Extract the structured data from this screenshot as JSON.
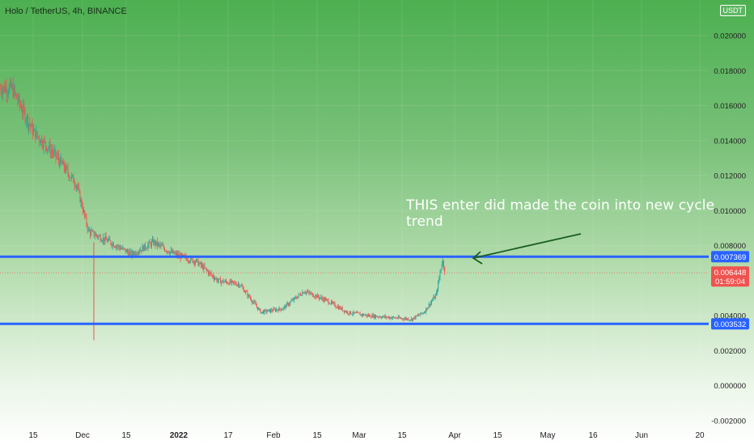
{
  "header": {
    "title": "Holo / TetherUS, 4h, BINANCE",
    "currency_badge": "USDT"
  },
  "annotation": {
    "text": "THIS enter did made the coin into new cycle trend"
  },
  "colors": {
    "level_line": "#2962ff",
    "candle_up": "#26a69a",
    "candle_down": "#ef5350",
    "arrow": "#1b5e20",
    "price_label": "#ef5350"
  },
  "chart_data": {
    "type": "candlestick",
    "symbol": "Holo / TetherUS",
    "interval": "4h",
    "exchange": "BINANCE",
    "quote_currency": "USDT",
    "y_axis": {
      "ticks": [
        "0.020000",
        "0.018000",
        "0.016000",
        "0.014000",
        "0.012000",
        "0.010000",
        "0.008000",
        "0.004000",
        "0.002000",
        "0.000000",
        "-0.002000"
      ],
      "ylim": [
        -0.002,
        0.0215
      ]
    },
    "x_axis": {
      "ticks": [
        {
          "label": "15",
          "bold": false
        },
        {
          "label": "Dec",
          "bold": false
        },
        {
          "label": "15",
          "bold": false
        },
        {
          "label": "2022",
          "bold": true
        },
        {
          "label": "17",
          "bold": false
        },
        {
          "label": "Feb",
          "bold": false
        },
        {
          "label": "15",
          "bold": false
        },
        {
          "label": "Mar",
          "bold": false
        },
        {
          "label": "15",
          "bold": false
        },
        {
          "label": "Apr",
          "bold": false
        },
        {
          "label": "15",
          "bold": false
        },
        {
          "label": "May",
          "bold": false
        },
        {
          "label": "16",
          "bold": false
        },
        {
          "label": "Jun",
          "bold": false
        },
        {
          "label": "20",
          "bold": false
        }
      ]
    },
    "horizontal_levels": [
      {
        "value": 0.007369,
        "label": "0.007369"
      },
      {
        "value": 0.003532,
        "label": "0.003532"
      }
    ],
    "last_price": {
      "value": 0.006448,
      "label": "0.006448",
      "countdown": "01:59:04"
    },
    "approx_path": [
      {
        "date": "2021-11-08",
        "close": 0.017
      },
      {
        "date": "2021-11-15",
        "close": 0.0145
      },
      {
        "date": "2021-11-22",
        "close": 0.0132
      },
      {
        "date": "2021-11-29",
        "close": 0.0115
      },
      {
        "date": "2021-12-03",
        "close": 0.0088
      },
      {
        "date": "2021-12-10",
        "close": 0.0082
      },
      {
        "date": "2021-12-17",
        "close": 0.0075
      },
      {
        "date": "2021-12-24",
        "close": 0.0082
      },
      {
        "date": "2021-12-31",
        "close": 0.0075
      },
      {
        "date": "2022-01-07",
        "close": 0.0071
      },
      {
        "date": "2022-01-14",
        "close": 0.006
      },
      {
        "date": "2022-01-21",
        "close": 0.0058
      },
      {
        "date": "2022-01-28",
        "close": 0.0042
      },
      {
        "date": "2022-02-04",
        "close": 0.0044
      },
      {
        "date": "2022-02-11",
        "close": 0.0054
      },
      {
        "date": "2022-02-18",
        "close": 0.0049
      },
      {
        "date": "2022-02-25",
        "close": 0.0042
      },
      {
        "date": "2022-03-04",
        "close": 0.004
      },
      {
        "date": "2022-03-11",
        "close": 0.0039
      },
      {
        "date": "2022-03-18",
        "close": 0.0038
      },
      {
        "date": "2022-03-22",
        "close": 0.0042
      },
      {
        "date": "2022-03-26",
        "close": 0.0052
      },
      {
        "date": "2022-03-28",
        "close": 0.0072
      },
      {
        "date": "2022-03-29",
        "close": 0.006448
      }
    ]
  }
}
